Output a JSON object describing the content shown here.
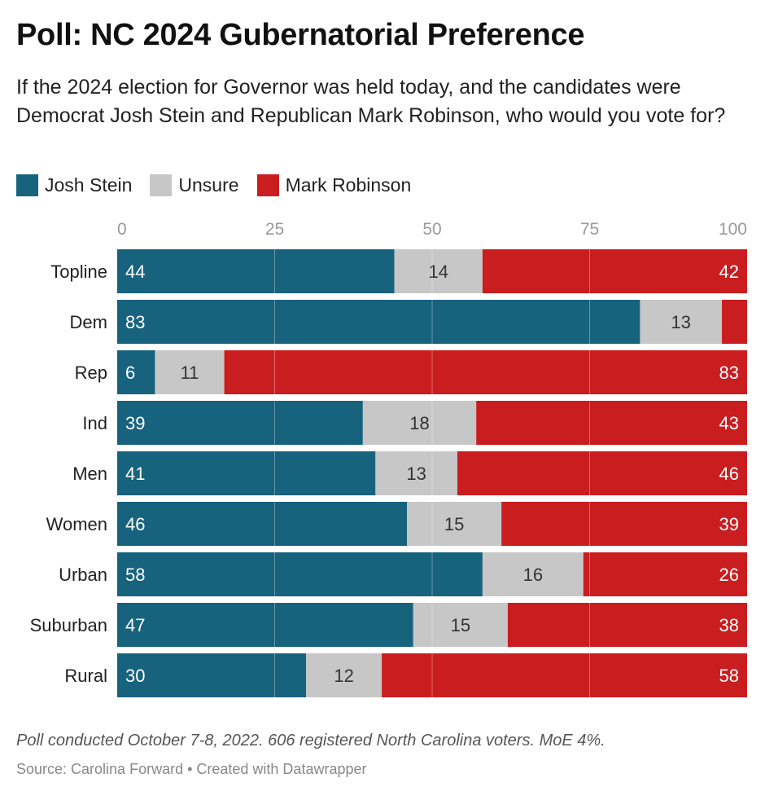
{
  "chart_data": {
    "type": "bar",
    "stacked": true,
    "orientation": "horizontal",
    "title": "Poll: NC 2024 Gubernatorial Preference",
    "subtitle": "If the 2024 election for Governor was held today, and the candidates were Democrat Josh Stein and Republican Mark Robinson, who would you vote for?",
    "categories": [
      "Topline",
      "Dem",
      "Rep",
      "Ind",
      "Men",
      "Women",
      "Urban",
      "Suburban",
      "Rural"
    ],
    "series": [
      {
        "name": "Josh Stein",
        "color": "#17627d",
        "values": [
          44,
          83,
          6,
          39,
          41,
          46,
          58,
          47,
          30
        ]
      },
      {
        "name": "Unsure",
        "color": "#c7c7c7",
        "values": [
          14,
          13,
          11,
          18,
          13,
          15,
          16,
          15,
          12
        ]
      },
      {
        "name": "Mark Robinson",
        "color": "#c91d20",
        "values": [
          42,
          4,
          83,
          43,
          46,
          39,
          26,
          38,
          58
        ]
      }
    ],
    "value_labels_shown": [
      [
        "44",
        "14",
        "42"
      ],
      [
        "83",
        "13",
        ""
      ],
      [
        "6",
        "11",
        "83"
      ],
      [
        "39",
        "18",
        "43"
      ],
      [
        "41",
        "13",
        "46"
      ],
      [
        "46",
        "15",
        "39"
      ],
      [
        "58",
        "16",
        "26"
      ],
      [
        "47",
        "15",
        "38"
      ],
      [
        "30",
        "12",
        "58"
      ]
    ],
    "xlim": [
      0,
      100
    ],
    "xticks": [
      0,
      25,
      50,
      75,
      100
    ],
    "xtick_labels": [
      "0",
      "25",
      "50",
      "75",
      "100"
    ],
    "grid": true,
    "legend_position": "top-left"
  },
  "legend": {
    "items": [
      {
        "label": "Josh Stein",
        "color": "#17627d"
      },
      {
        "label": "Unsure",
        "color": "#c7c7c7"
      },
      {
        "label": "Mark Robinson",
        "color": "#c91d20"
      }
    ]
  },
  "footer": {
    "note": "Poll conducted October 7-8, 2022. 606 registered North Carolina voters. MoE 4%.",
    "source": "Source: Carolina Forward • Created with Datawrapper"
  }
}
